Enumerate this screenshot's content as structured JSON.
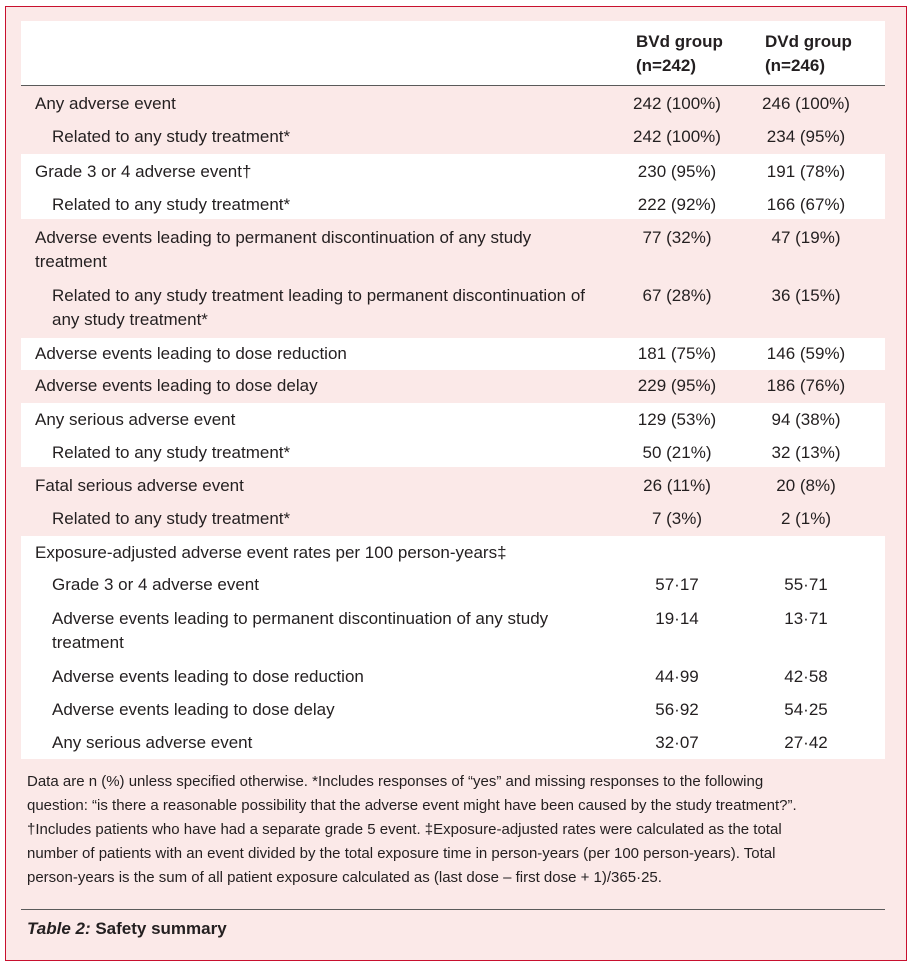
{
  "header": {
    "col1": [
      "BVd group",
      "(n=242)"
    ],
    "col2": [
      "DVd group",
      "(n=246)"
    ]
  },
  "rows": [
    {
      "label": "Any adverse event",
      "v1": "242 (100%)",
      "v2": "246 (100%)"
    },
    {
      "label": "Related to any study treatment*",
      "v1": "242 (100%)",
      "v2": "234 (95%)"
    },
    {
      "label": "Grade 3 or 4 adverse event†",
      "v1": "230 (95%)",
      "v2": "191 (78%)"
    },
    {
      "label": "Related to any study treatment*",
      "v1": "222 (92%)",
      "v2": "166 (67%)"
    },
    {
      "label": [
        "Adverse events leading to permanent discontinuation of any study",
        "treatment"
      ],
      "v1": "77 (32%)",
      "v2": "47 (19%)"
    },
    {
      "label": [
        "Related to any study treatment leading to permanent discontinuation of",
        "any study treatment*"
      ],
      "v1": "67 (28%)",
      "v2": "36 (15%)"
    },
    {
      "label": "Adverse events leading to dose reduction",
      "v1": "181 (75%)",
      "v2": "146 (59%)"
    },
    {
      "label": "Adverse events leading to dose delay",
      "v1": "229 (95%)",
      "v2": "186 (76%)"
    },
    {
      "label": "Any serious adverse event",
      "v1": "129 (53%)",
      "v2": "94 (38%)"
    },
    {
      "label": "Related to any study treatment*",
      "v1": "50 (21%)",
      "v2": "32 (13%)"
    },
    {
      "label": "Fatal serious adverse event",
      "v1": "26 (11%)",
      "v2": "20 (8%)"
    },
    {
      "label": "Related to any study treatment*",
      "v1": "7 (3%)",
      "v2": "2 (1%)"
    },
    {
      "label": "Exposure-adjusted adverse event rates per 100 person-years‡",
      "v1": "",
      "v2": ""
    },
    {
      "label": "Grade 3 or 4 adverse event",
      "v1": "57·17",
      "v2": "55·71"
    },
    {
      "label": [
        "Adverse events leading to permanent discontinuation of any study",
        "treatment"
      ],
      "v1": "19·14",
      "v2": "13·71"
    },
    {
      "label": "Adverse events leading to dose reduction",
      "v1": "44·99",
      "v2": "42·58"
    },
    {
      "label": "Adverse events leading to dose delay",
      "v1": "56·92",
      "v2": "54·25"
    },
    {
      "label": "Any serious adverse event",
      "v1": "32·07",
      "v2": "27·42"
    }
  ],
  "footnote": [
    "Data are n (%) unless specified otherwise. *Includes responses of “yes” and missing responses to the following",
    "question: “is there a reasonable possibility that the adverse event might have been caused by the study treatment?”.",
    "†Includes patients who have had a separate grade 5 event. ‡Exposure-adjusted rates were calculated as the total",
    "number of patients with an event divided by the total exposure time in person-years (per 100 person-years). Total",
    "person-years is the sum of all patient exposure calculated as (last dose – first dose + 1)/365·25."
  ],
  "caption": {
    "lead": "Table 2:",
    "title": "Safety summary"
  }
}
